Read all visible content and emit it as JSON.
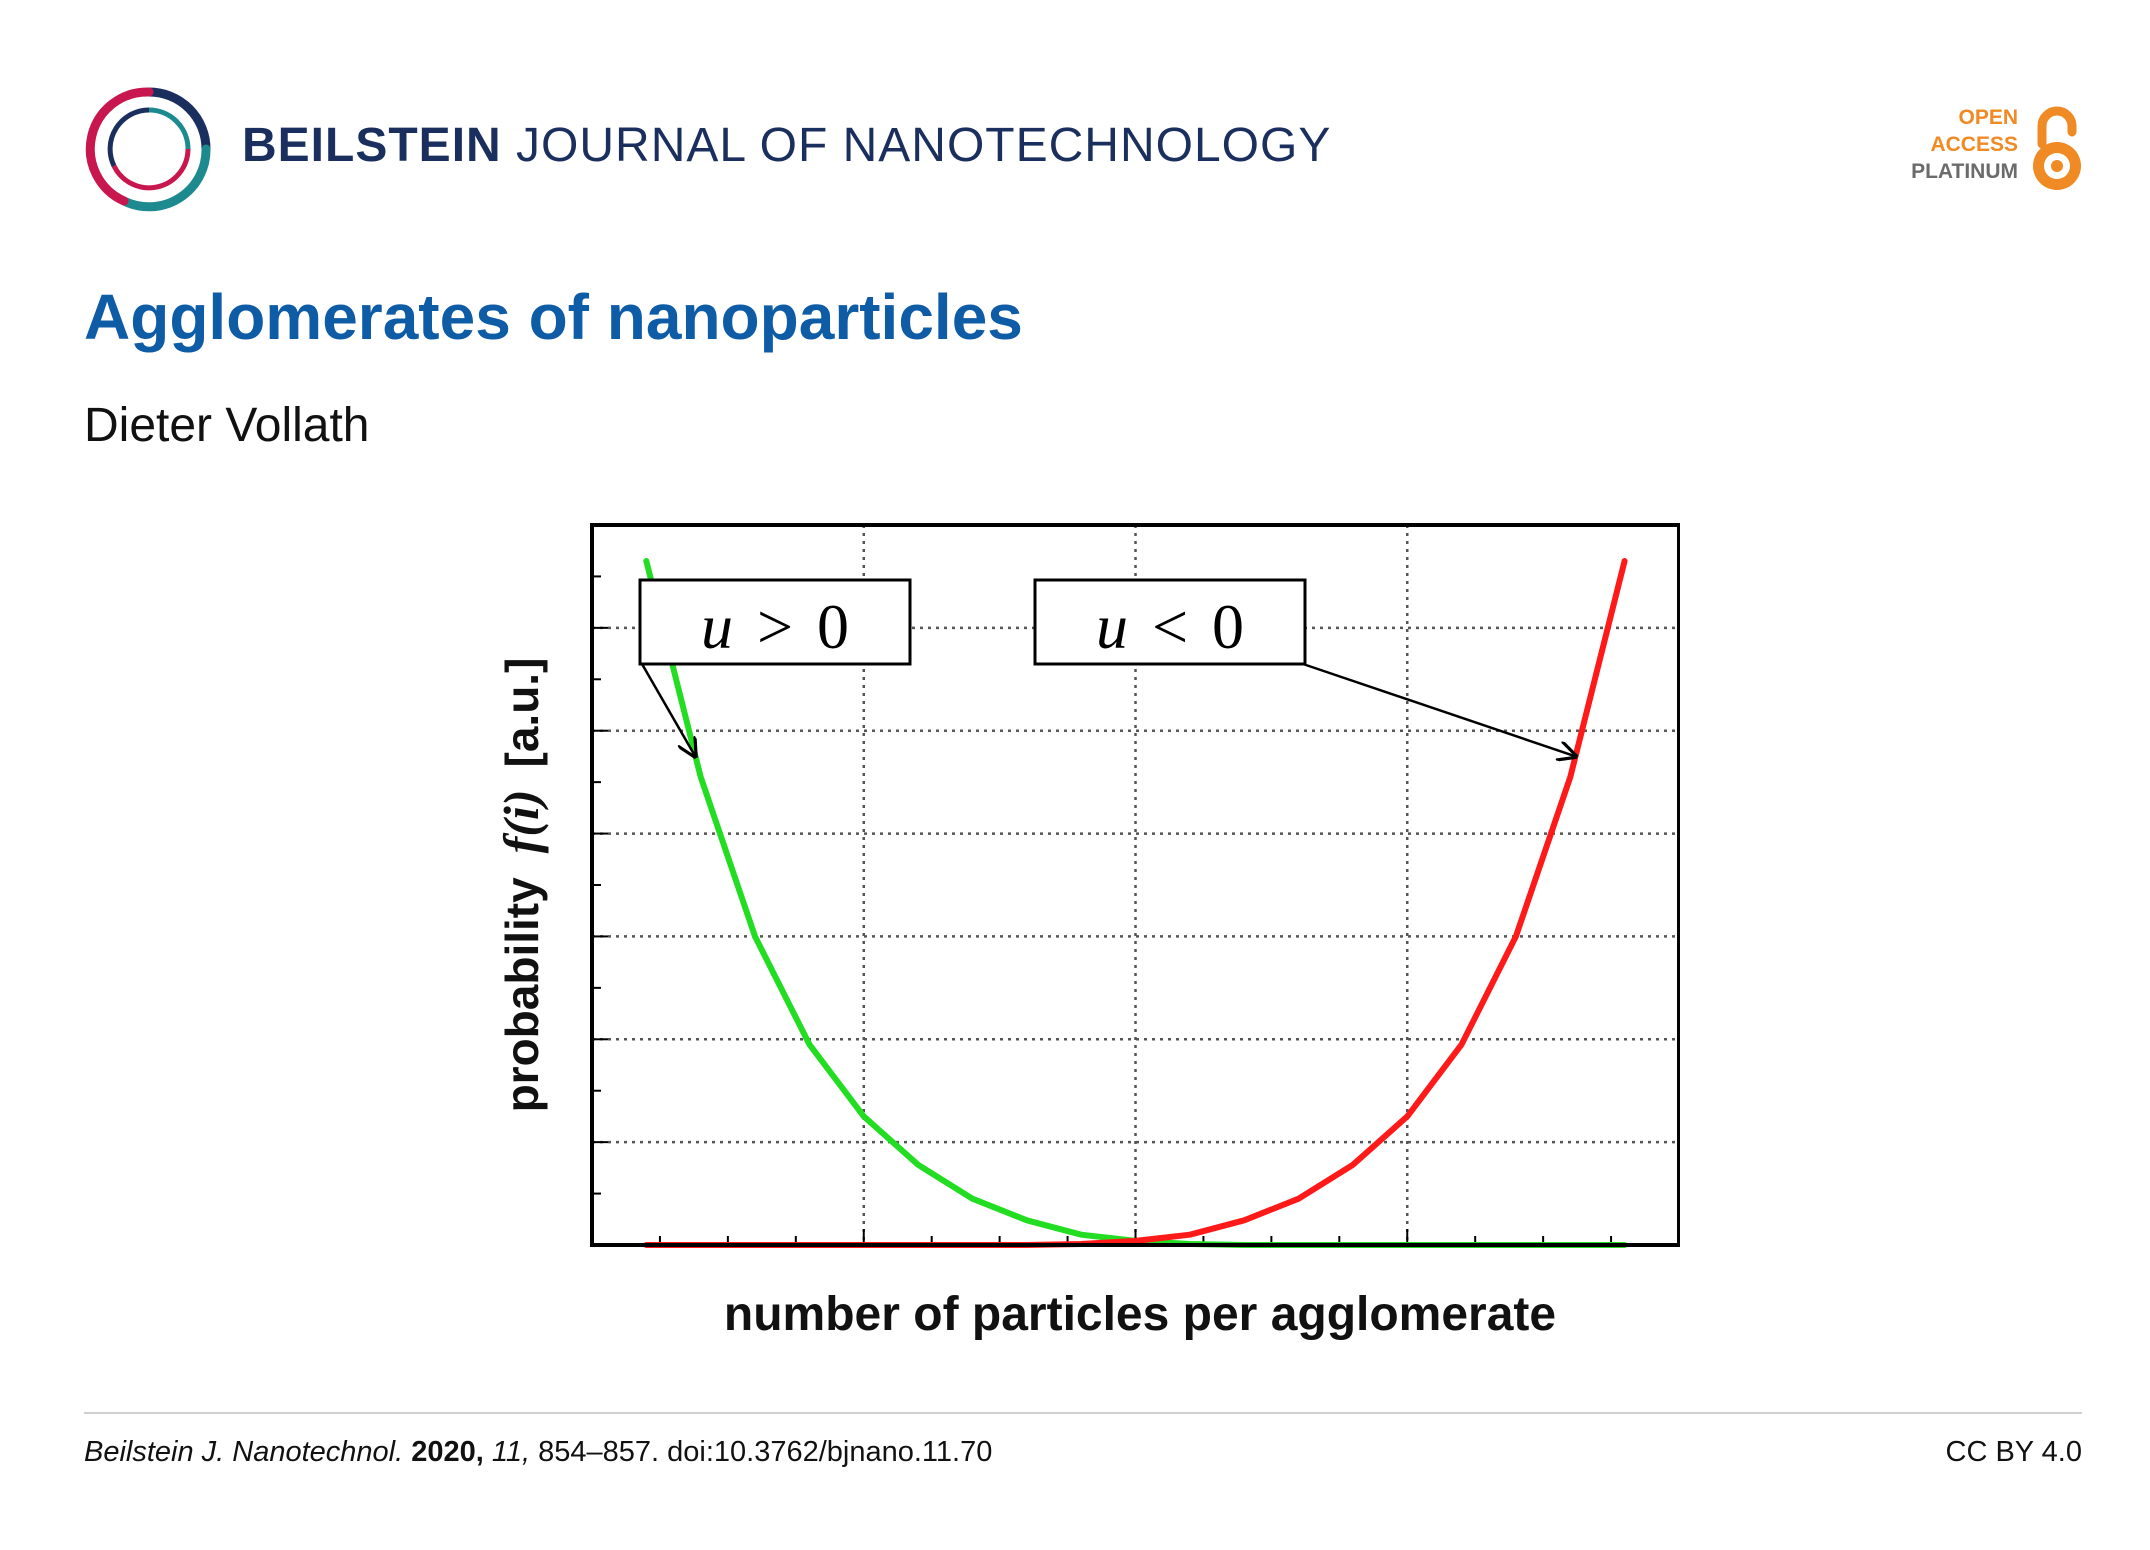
{
  "header": {
    "journal_brand": "BEILSTEIN",
    "journal_rest": "JOURNAL OF NANOTECHNOLOGY",
    "open_access": {
      "line1": "OPEN",
      "line2": "ACCESS",
      "line3": "PLATINUM",
      "icon": "open-lock-icon",
      "accent_color": "#f08a24"
    },
    "logo_icon": "beilstein-swirl-logo"
  },
  "article": {
    "title": "Agglomerates of nanoparticles",
    "author": "Dieter Vollath"
  },
  "chart_data": {
    "type": "line",
    "xlabel": "number of particles per agglomerate",
    "ylabel_prefix": "probability",
    "ylabel_func": "f(i)",
    "ylabel_unit": "[a.u.]",
    "x_ticks_labeled": false,
    "y_ticks_labeled": false,
    "grid": true,
    "grid_style": "dotted",
    "xlim": [
      0,
      4
    ],
    "ylim": [
      0,
      7
    ],
    "annotations": [
      {
        "text_var": "u",
        "text_op": ">",
        "text_val": "0",
        "points_to_series": 0
      },
      {
        "text_var": "u",
        "text_op": "<",
        "text_val": "0",
        "points_to_series": 1
      }
    ],
    "series": [
      {
        "color": "#22dd22",
        "x": [
          0.2,
          0.4,
          0.6,
          0.8,
          1.0,
          1.2,
          1.4,
          1.6,
          1.8,
          2.0,
          2.2,
          2.4,
          2.6,
          2.8,
          3.0,
          3.2,
          3.4,
          3.6,
          3.8
        ],
        "y": [
          6.65,
          4.55,
          3.0,
          1.95,
          1.25,
          0.78,
          0.45,
          0.24,
          0.1,
          0.04,
          0.01,
          0.0,
          0.0,
          0.0,
          0.0,
          0.0,
          0.0,
          0.0,
          0.0
        ]
      },
      {
        "color": "#ff1a1a",
        "x": [
          0.2,
          0.4,
          0.6,
          0.8,
          1.0,
          1.2,
          1.4,
          1.6,
          1.8,
          2.0,
          2.2,
          2.4,
          2.6,
          2.8,
          3.0,
          3.2,
          3.4,
          3.6,
          3.8
        ],
        "y": [
          0.0,
          0.0,
          0.0,
          0.0,
          0.0,
          0.0,
          0.0,
          0.0,
          0.01,
          0.04,
          0.1,
          0.24,
          0.45,
          0.78,
          1.25,
          1.95,
          3.0,
          4.55,
          6.65
        ]
      }
    ]
  },
  "footer": {
    "journal_abbrev": "Beilstein J. Nanotechnol.",
    "year": "2020,",
    "volume": "11,",
    "pages_doi": "854–857. doi:10.3762/bjnano.11.70",
    "license": "CC BY 4.0"
  }
}
